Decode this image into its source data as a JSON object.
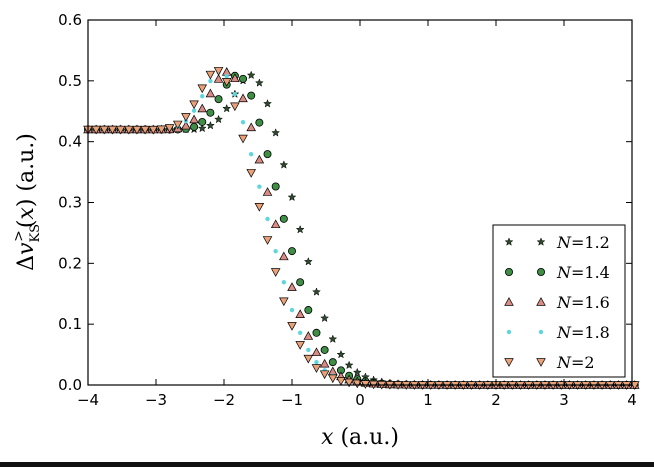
{
  "chart_data": {
    "type": "scatter",
    "xlabel": "x (a.u.)",
    "ylabel": "Δv_KS^>(x) (a.u.)",
    "xlim": [
      -4,
      4
    ],
    "ylim": [
      0,
      0.6
    ],
    "xticks": [
      "−4",
      "−3",
      "−2",
      "−1",
      "0",
      "1",
      "2",
      "3",
      "4"
    ],
    "yticks": [
      "0.0",
      "0.1",
      "0.2",
      "0.3",
      "0.4",
      "0.5",
      "0.6"
    ],
    "legend_position": "lower-right",
    "grid": false,
    "series": [
      {
        "name": "N=1.2",
        "marker": "star",
        "color": "#2e4a2e",
        "x0": -4.0,
        "dx": 0.12,
        "plateau": 0.42,
        "peak_x": -1.55,
        "peak_y": 0.53,
        "drop_x": -0.78
      },
      {
        "name": "N=1.4",
        "marker": "circle",
        "color": "#3e8e45",
        "x0": -4.0,
        "dx": 0.12,
        "plateau": 0.42,
        "peak_x": -1.75,
        "peak_y": 0.53,
        "drop_x": -0.98
      },
      {
        "name": "N=1.6",
        "marker": "triangle-up",
        "color": "#d98b84",
        "x0": -4.0,
        "dx": 0.12,
        "plateau": 0.42,
        "peak_x": -1.9,
        "peak_y": 0.535,
        "drop_x": -1.12
      },
      {
        "name": "N=1.8",
        "marker": "point",
        "color": "#5fd6dc",
        "x0": -4.0,
        "dx": 0.12,
        "plateau": 0.42,
        "peak_x": -2.0,
        "peak_y": 0.535,
        "drop_x": -1.22
      },
      {
        "name": "N=2",
        "marker": "triangle-down",
        "color": "#e9a178",
        "x0": -4.0,
        "dx": 0.12,
        "plateau": 0.42,
        "peak_x": -2.05,
        "peak_y": 0.54,
        "drop_x": -1.3
      }
    ]
  }
}
